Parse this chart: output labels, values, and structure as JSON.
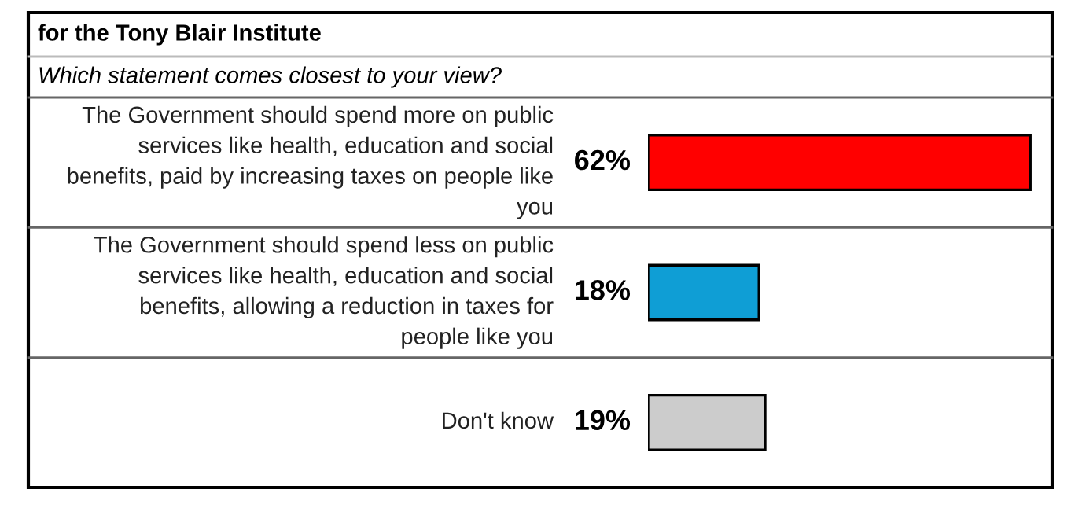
{
  "chart_data": {
    "type": "bar",
    "orientation": "horizontal",
    "title": "for the Tony Blair Institute",
    "subtitle": "Which statement comes closest to your view?",
    "categories": [
      "The Government should spend more on public\nservices like health, education and social\nbenefits, paid by increasing taxes on people like\nyou",
      "The Government should spend less on public\nservices like health, education and social\nbenefits, allowing a reduction in taxes for\npeople like you",
      "Don't know"
    ],
    "values": [
      62,
      18,
      19
    ],
    "colors": [
      "#ff0000",
      "#0f9ed5",
      "#cccccc"
    ],
    "value_labels": [
      "62%",
      "18%",
      "19%"
    ],
    "legend": false,
    "tick_labels": false
  }
}
